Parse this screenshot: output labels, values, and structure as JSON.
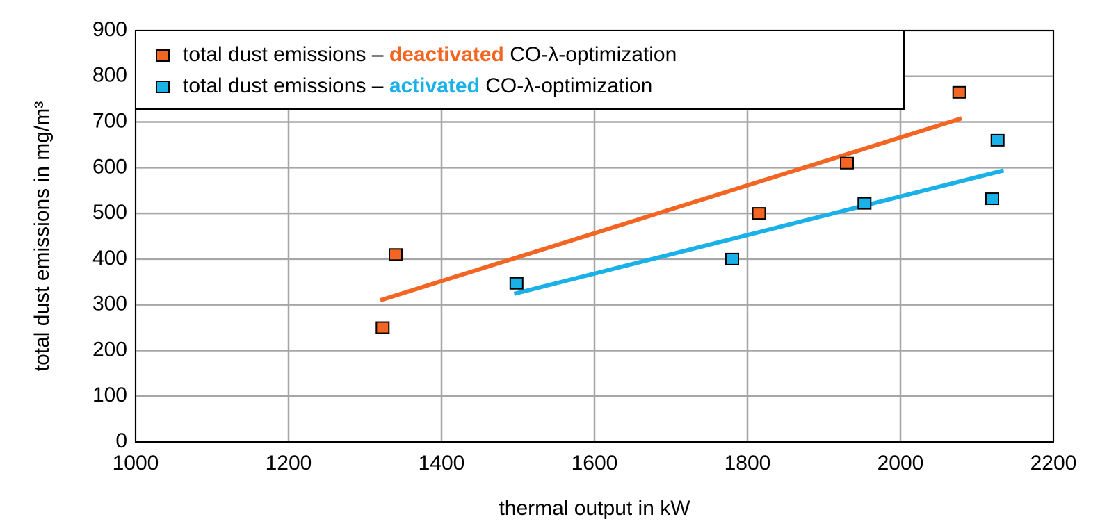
{
  "chart_data": {
    "type": "scatter",
    "xlabel": "thermal output in kW",
    "ylabel": "total dust emissions in mg/m³",
    "xlim": [
      1000,
      2200
    ],
    "xticks": [
      1000,
      1200,
      1400,
      1600,
      1800,
      2000,
      2200
    ],
    "ylim": [
      0,
      900
    ],
    "yticks": [
      0,
      100,
      200,
      300,
      400,
      500,
      600,
      700,
      800,
      900
    ],
    "grid": true,
    "legend": "upper left",
    "series": [
      {
        "name_parts": [
          "total dust emissions – ",
          "deactivated",
          " CO-λ-optimization"
        ],
        "color": "#f26522",
        "x": [
          1323,
          1340,
          1815,
          1930,
          2077
        ],
        "values": [
          250,
          410,
          500,
          610,
          765
        ],
        "trend_x": [
          1320,
          2080
        ],
        "trend_y": [
          310,
          708
        ]
      },
      {
        "name_parts": [
          "total dust emissions – ",
          "activated",
          " CO-λ-optimization"
        ],
        "color": "#1ab0e8",
        "x": [
          1498,
          1780,
          1953,
          2120,
          2127
        ],
        "values": [
          347,
          400,
          522,
          532,
          660
        ],
        "trend_x": [
          1495,
          2135
        ],
        "trend_y": [
          324,
          594
        ]
      }
    ]
  }
}
